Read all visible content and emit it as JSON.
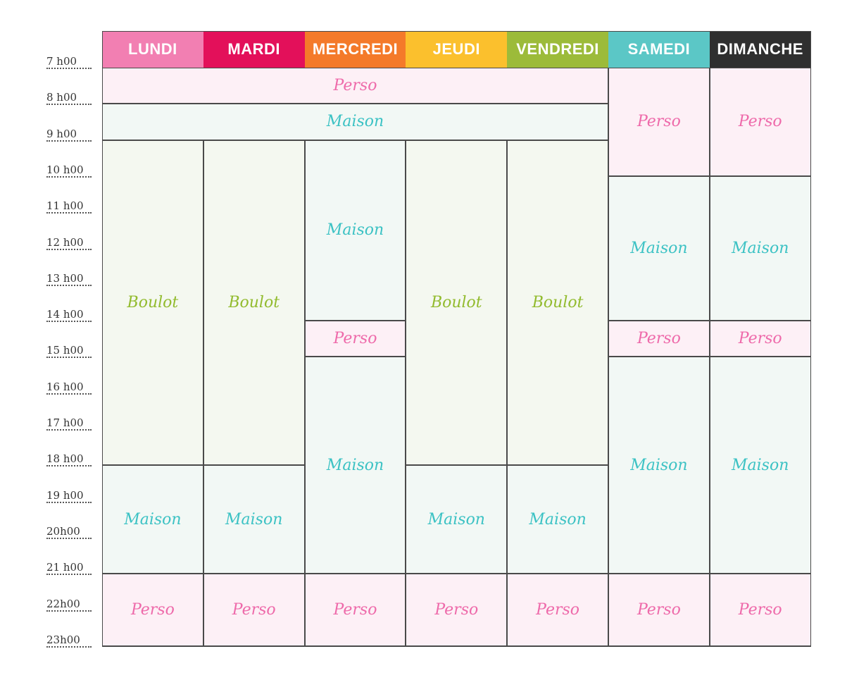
{
  "times": [
    "7 h00",
    "8 h00",
    "9 h00",
    "10 h00",
    "11 h00",
    "12 h00",
    "13 h00",
    "14 h00",
    "15 h00",
    "16 h00",
    "17 h00",
    "18 h00",
    "19 h00",
    "20h00",
    "21 h00",
    "22h00",
    "23h00"
  ],
  "days": [
    {
      "label": "LUNDI",
      "color": "#f27fb2"
    },
    {
      "label": "MARDI",
      "color": "#e3105a"
    },
    {
      "label": "MERCREDI",
      "color": "#f47a2a"
    },
    {
      "label": "JEUDI",
      "color": "#fbc02d"
    },
    {
      "label": "VENDREDI",
      "color": "#9cbb3a"
    },
    {
      "label": "SAMEDI",
      "color": "#5bc7c6"
    },
    {
      "label": "DIMANCHE",
      "color": "#2f2f2f"
    }
  ],
  "activity_labels": {
    "perso": "Perso",
    "maison": "Maison",
    "boulot": "Boulot"
  },
  "schedule": [
    {
      "type": "perso",
      "start": 8,
      "end": 9,
      "day_from": 0,
      "day_to": 4
    },
    {
      "type": "maison",
      "start": 9,
      "end": 10,
      "day_from": 0,
      "day_to": 4
    },
    {
      "type": "boulot",
      "start": 10,
      "end": 19,
      "day_from": 0,
      "day_to": 0
    },
    {
      "type": "boulot",
      "start": 10,
      "end": 19,
      "day_from": 1,
      "day_to": 1
    },
    {
      "type": "maison",
      "start": 10,
      "end": 15,
      "day_from": 2,
      "day_to": 2
    },
    {
      "type": "boulot",
      "start": 10,
      "end": 19,
      "day_from": 3,
      "day_to": 3
    },
    {
      "type": "boulot",
      "start": 10,
      "end": 19,
      "day_from": 4,
      "day_to": 4
    },
    {
      "type": "perso",
      "start": 8,
      "end": 11,
      "day_from": 5,
      "day_to": 5
    },
    {
      "type": "perso",
      "start": 8,
      "end": 11,
      "day_from": 6,
      "day_to": 6
    },
    {
      "type": "maison",
      "start": 11,
      "end": 15,
      "day_from": 5,
      "day_to": 5
    },
    {
      "type": "maison",
      "start": 11,
      "end": 15,
      "day_from": 6,
      "day_to": 6
    },
    {
      "type": "perso",
      "start": 15,
      "end": 16,
      "day_from": 2,
      "day_to": 2
    },
    {
      "type": "perso",
      "start": 15,
      "end": 16,
      "day_from": 5,
      "day_to": 5
    },
    {
      "type": "perso",
      "start": 15,
      "end": 16,
      "day_from": 6,
      "day_to": 6
    },
    {
      "type": "maison",
      "start": 16,
      "end": 22,
      "day_from": 2,
      "day_to": 2
    },
    {
      "type": "maison",
      "start": 16,
      "end": 22,
      "day_from": 5,
      "day_to": 5
    },
    {
      "type": "maison",
      "start": 16,
      "end": 22,
      "day_from": 6,
      "day_to": 6
    },
    {
      "type": "maison",
      "start": 19,
      "end": 22,
      "day_from": 0,
      "day_to": 0
    },
    {
      "type": "maison",
      "start": 19,
      "end": 22,
      "day_from": 1,
      "day_to": 1
    },
    {
      "type": "maison",
      "start": 19,
      "end": 22,
      "day_from": 3,
      "day_to": 3
    },
    {
      "type": "maison",
      "start": 19,
      "end": 22,
      "day_from": 4,
      "day_to": 4
    },
    {
      "type": "perso",
      "start": 22,
      "end": 24,
      "day_from": 0,
      "day_to": 0
    },
    {
      "type": "perso",
      "start": 22,
      "end": 24,
      "day_from": 1,
      "day_to": 1
    },
    {
      "type": "perso",
      "start": 22,
      "end": 24,
      "day_from": 2,
      "day_to": 2
    },
    {
      "type": "perso",
      "start": 22,
      "end": 24,
      "day_from": 3,
      "day_to": 3
    },
    {
      "type": "perso",
      "start": 22,
      "end": 24,
      "day_from": 4,
      "day_to": 4
    },
    {
      "type": "perso",
      "start": 22,
      "end": 24,
      "day_from": 5,
      "day_to": 5
    },
    {
      "type": "perso",
      "start": 22,
      "end": 24,
      "day_from": 6,
      "day_to": 6
    }
  ]
}
